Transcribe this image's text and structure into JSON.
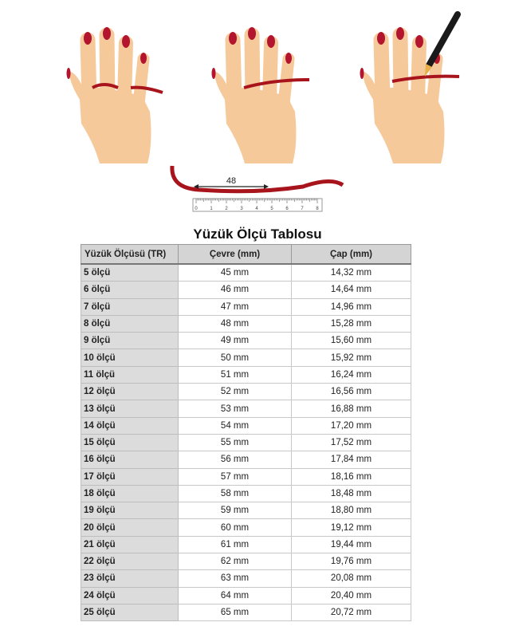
{
  "illustration": {
    "measure_label": "48",
    "ruler_ticks": [
      "0",
      "1",
      "2",
      "3",
      "4",
      "5",
      "6",
      "7",
      "8"
    ],
    "colors": {
      "skin": "#f6c99b",
      "nail": "#b3152e",
      "string": "#a8141c"
    }
  },
  "title": "Yüzük Ölçü Tablosu",
  "table": {
    "headers": [
      "Yüzük Ölçüsü (TR)",
      "Çevre (mm)",
      "Çap (mm)"
    ],
    "rows": [
      [
        "5 ölçü",
        "45 mm",
        "14,32 mm"
      ],
      [
        "6 ölçü",
        "46 mm",
        "14,64 mm"
      ],
      [
        "7 ölçü",
        "47 mm",
        "14,96 mm"
      ],
      [
        "8 ölçü",
        "48 mm",
        "15,28 mm"
      ],
      [
        "9 ölçü",
        "49 mm",
        "15,60 mm"
      ],
      [
        "10 ölçü",
        "50 mm",
        "15,92 mm"
      ],
      [
        "11 ölçü",
        "51 mm",
        "16,24 mm"
      ],
      [
        "12 ölçü",
        "52 mm",
        "16,56 mm"
      ],
      [
        "13 ölçü",
        "53 mm",
        "16,88 mm"
      ],
      [
        "14 ölçü",
        "54 mm",
        "17,20 mm"
      ],
      [
        "15 ölçü",
        "55 mm",
        "17,52 mm"
      ],
      [
        "16 ölçü",
        "56 mm",
        "17,84 mm"
      ],
      [
        "17 ölçü",
        "57 mm",
        "18,16 mm"
      ],
      [
        "18 ölçü",
        "58 mm",
        "18,48 mm"
      ],
      [
        "19 ölçü",
        "59 mm",
        "18,80 mm"
      ],
      [
        "20 ölçü",
        "60 mm",
        "19,12 mm"
      ],
      [
        "21 ölçü",
        "61 mm",
        "19,44 mm"
      ],
      [
        "22 ölçü",
        "62 mm",
        "19,76 mm"
      ],
      [
        "23 ölçü",
        "63 mm",
        "20,08 mm"
      ],
      [
        "24 ölçü",
        "64 mm",
        "20,40 mm"
      ],
      [
        "25 ölçü",
        "65 mm",
        "20,72 mm"
      ]
    ]
  }
}
